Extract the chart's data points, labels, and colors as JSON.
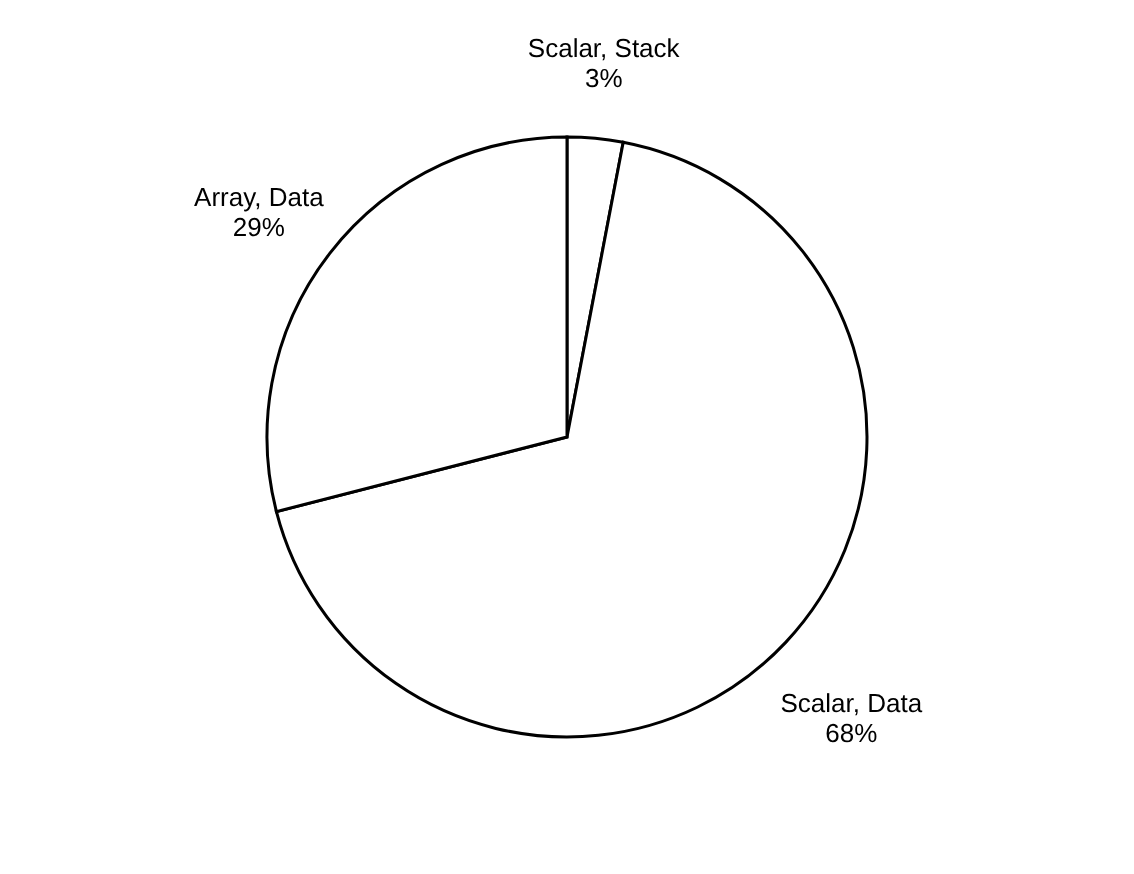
{
  "chart_data": {
    "type": "pie",
    "categories": [
      "Scalar, Stack",
      "Scalar, Data",
      "Array, Data"
    ],
    "values": [
      3,
      68,
      29
    ],
    "value_labels": [
      "3%",
      "68%",
      "29%"
    ],
    "colors": [
      "#ffffff",
      "#ffffff",
      "#ffffff"
    ]
  }
}
